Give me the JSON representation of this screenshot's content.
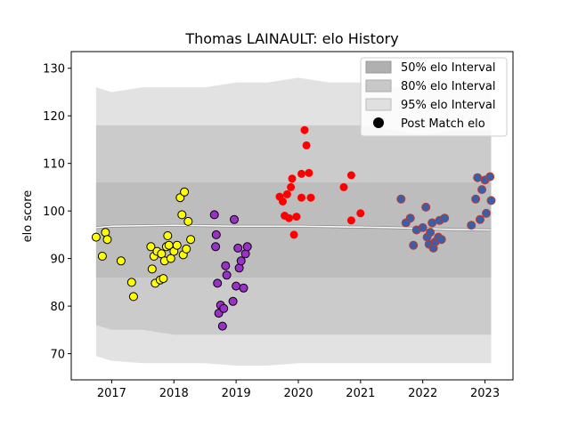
{
  "chart_data": {
    "type": "scatter",
    "title": "Thomas LAINAULT: elo History",
    "xlabel": "",
    "ylabel": "elo score",
    "xlim": [
      2016.35,
      2023.45
    ],
    "ylim": [
      64.5,
      133.5
    ],
    "xticks": [
      2017,
      2018,
      2019,
      2020,
      2021,
      2022,
      2023
    ],
    "yticks": [
      70,
      80,
      90,
      100,
      110,
      120,
      130
    ],
    "grid": false,
    "legend_position": "top-right",
    "legend": [
      {
        "label": "50% elo Interval",
        "color": "#b0b0b0"
      },
      {
        "label": "80% elo Interval",
        "color": "#c8c8c8"
      },
      {
        "label": "95% elo Interval",
        "color": "#e0e0e0"
      },
      {
        "label": "Post Match elo",
        "color": "#000000"
      }
    ],
    "bands": {
      "x": [
        2016.75,
        2017.0,
        2017.5,
        2018.0,
        2018.5,
        2019.0,
        2019.5,
        2020.0,
        2020.5,
        2021.0,
        2021.5,
        2022.0,
        2022.5,
        2023.1
      ],
      "p95_upper": [
        126,
        125,
        126,
        126,
        126,
        127,
        127,
        128,
        127,
        127,
        126,
        125,
        126,
        127
      ],
      "p95_lower": [
        69.5,
        68.5,
        68,
        68,
        68,
        67.5,
        67.5,
        68,
        68,
        68,
        68,
        68,
        68,
        68
      ],
      "p80_upper": [
        118,
        118,
        118,
        118,
        118,
        118,
        118,
        118,
        118,
        118,
        117,
        116,
        117,
        117
      ],
      "p80_lower": [
        76,
        75,
        75,
        74,
        74,
        74,
        74,
        74,
        74,
        74,
        74,
        74,
        74,
        74
      ],
      "p50_upper": [
        106,
        106,
        106,
        106,
        106,
        106,
        106,
        106,
        106,
        106,
        106,
        106,
        106,
        106
      ],
      "p50_lower": [
        86,
        86,
        86,
        86,
        86,
        86,
        86,
        86,
        86,
        86,
        86,
        86,
        86,
        86
      ],
      "mean": [
        96.5,
        96.8,
        96.9,
        97.0,
        96.9,
        96.8,
        96.8,
        96.8,
        96.7,
        96.6,
        96.5,
        96.3,
        96.1,
        96.0
      ]
    },
    "series": [
      {
        "color": "#ffff00",
        "points": [
          [
            2016.75,
            94.5
          ],
          [
            2016.85,
            90.5
          ],
          [
            2016.9,
            95.5
          ],
          [
            2016.93,
            94.0
          ],
          [
            2017.15,
            89.5
          ],
          [
            2017.32,
            85.0
          ],
          [
            2017.35,
            82.0
          ],
          [
            2017.63,
            92.5
          ],
          [
            2017.65,
            87.8
          ],
          [
            2017.68,
            90.5
          ],
          [
            2017.7,
            84.8
          ],
          [
            2017.73,
            91.5
          ],
          [
            2017.78,
            85.5
          ],
          [
            2017.8,
            91.0
          ],
          [
            2017.83,
            85.8
          ],
          [
            2017.85,
            89.5
          ],
          [
            2017.88,
            92.5
          ],
          [
            2017.9,
            94.8
          ],
          [
            2017.92,
            92.8
          ],
          [
            2017.95,
            90.0
          ],
          [
            2018.0,
            91.5
          ],
          [
            2018.05,
            92.8
          ],
          [
            2018.1,
            102.8
          ],
          [
            2018.13,
            99.2
          ],
          [
            2018.17,
            104.0
          ],
          [
            2018.15,
            90.8
          ],
          [
            2018.2,
            92.0
          ],
          [
            2018.27,
            94.0
          ],
          [
            2018.23,
            97.8
          ]
        ]
      },
      {
        "color": "#9b30c8",
        "points": [
          [
            2018.65,
            99.2
          ],
          [
            2018.67,
            92.5
          ],
          [
            2018.68,
            95.0
          ],
          [
            2018.7,
            84.8
          ],
          [
            2018.72,
            78.5
          ],
          [
            2018.75,
            80.2
          ],
          [
            2018.78,
            75.8
          ],
          [
            2018.8,
            79.5
          ],
          [
            2018.83,
            88.5
          ],
          [
            2018.85,
            86.5
          ],
          [
            2018.95,
            81.0
          ],
          [
            2018.97,
            98.2
          ],
          [
            2019.0,
            84.2
          ],
          [
            2019.03,
            92.2
          ],
          [
            2019.05,
            88.0
          ],
          [
            2019.08,
            89.5
          ],
          [
            2019.12,
            83.8
          ],
          [
            2019.15,
            91.0
          ],
          [
            2019.18,
            92.5
          ]
        ]
      },
      {
        "color": "#ff0000",
        "points": [
          [
            2019.7,
            103.0
          ],
          [
            2019.75,
            102.0
          ],
          [
            2019.78,
            99.0
          ],
          [
            2019.82,
            103.5
          ],
          [
            2019.85,
            98.5
          ],
          [
            2019.88,
            105.0
          ],
          [
            2019.9,
            106.8
          ],
          [
            2019.93,
            95.0
          ],
          [
            2019.97,
            98.8
          ],
          [
            2020.05,
            107.8
          ],
          [
            2020.05,
            102.8
          ],
          [
            2020.1,
            117.0
          ],
          [
            2020.13,
            113.8
          ],
          [
            2020.17,
            108.0
          ],
          [
            2020.2,
            102.8
          ],
          [
            2020.73,
            105.0
          ],
          [
            2020.85,
            107.5
          ],
          [
            2020.85,
            98.0
          ],
          [
            2021.0,
            99.5
          ]
        ]
      },
      {
        "color": "#3a5faa",
        "points": [
          [
            2021.65,
            102.5
          ],
          [
            2021.73,
            97.5
          ],
          [
            2021.8,
            98.5
          ],
          [
            2021.85,
            92.8
          ],
          [
            2021.9,
            96.0
          ],
          [
            2022.0,
            96.5
          ],
          [
            2022.05,
            100.8
          ],
          [
            2022.07,
            94.5
          ],
          [
            2022.1,
            93.0
          ],
          [
            2022.12,
            95.5
          ],
          [
            2022.15,
            97.5
          ],
          [
            2022.17,
            92.2
          ],
          [
            2022.2,
            93.5
          ],
          [
            2022.25,
            94.5
          ],
          [
            2022.27,
            98.0
          ],
          [
            2022.3,
            94.0
          ],
          [
            2022.35,
            98.5
          ],
          [
            2022.78,
            97.0
          ],
          [
            2022.85,
            102.5
          ],
          [
            2022.88,
            107.0
          ],
          [
            2022.92,
            98.2
          ],
          [
            2022.95,
            104.5
          ],
          [
            2023.0,
            106.5
          ],
          [
            2023.02,
            99.5
          ],
          [
            2023.08,
            107.2
          ],
          [
            2023.1,
            102.2
          ]
        ]
      }
    ]
  }
}
